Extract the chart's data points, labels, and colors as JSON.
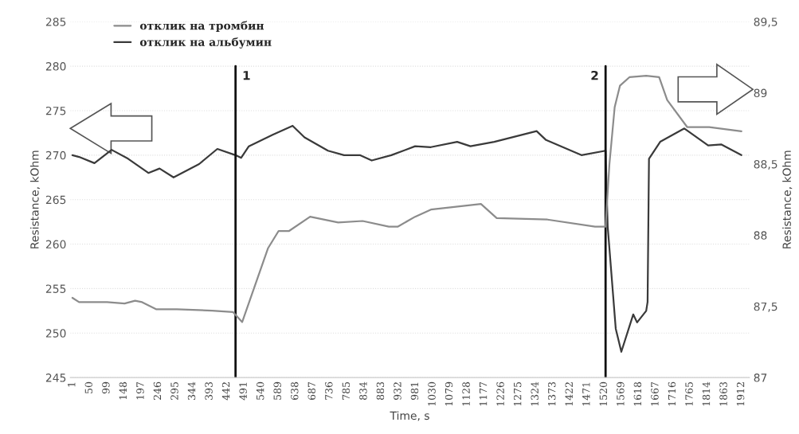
{
  "chart_data": {
    "type": "line",
    "xlabel": "Time, s",
    "ylabel": "Resistance, kOhm",
    "y2label": "Resistance, kOhm",
    "series": [
      {
        "name": "отклик на тромбин",
        "color": "#8c8c8c",
        "axis": "y2",
        "x": [
          1,
          20,
          100,
          150,
          180,
          200,
          240,
          300,
          400,
          460,
          486,
          520,
          560,
          590,
          620,
          680,
          760,
          830,
          905,
          930,
          980,
          1025,
          1168,
          1213,
          1358,
          1494,
          1524,
          1535,
          1550,
          1565,
          1592,
          1640,
          1677,
          1700,
          1757,
          1820,
          1912
        ],
        "values": [
          87.56,
          87.53,
          87.53,
          87.52,
          87.54,
          87.53,
          87.48,
          87.48,
          87.47,
          87.46,
          87.39,
          87.63,
          87.91,
          88.03,
          88.03,
          88.13,
          88.09,
          88.1,
          88.06,
          88.06,
          88.13,
          88.18,
          88.22,
          88.12,
          88.11,
          88.06,
          88.06,
          88.5,
          88.9,
          89.05,
          89.11,
          89.12,
          89.11,
          88.95,
          88.76,
          88.76,
          88.73
        ]
      },
      {
        "name": "отклик на альбумин",
        "color": "#3a3a3a",
        "x": [
          1,
          20,
          64,
          113,
          160,
          218,
          250,
          290,
          363,
          415,
          467,
          483,
          505,
          573,
          630,
          664,
          731,
          777,
          822,
          856,
          912,
          980,
          1025,
          1100,
          1138,
          1206,
          1327,
          1354,
          1455,
          1524,
          1530,
          1553,
          1569,
          1603,
          1614,
          1640,
          1644,
          1648,
          1680,
          1749,
          1817,
          1855,
          1912
        ],
        "values": [
          270,
          269.8,
          269.1,
          270.6,
          269.6,
          268,
          268.5,
          267.5,
          269,
          270.7,
          270,
          269.7,
          271,
          272.3,
          273.3,
          272,
          270.5,
          270,
          270,
          269.4,
          270,
          271,
          270.9,
          271.5,
          271,
          271.5,
          272.7,
          271.7,
          270,
          270.5,
          262,
          250.5,
          247.9,
          252.1,
          251.2,
          252.5,
          253.5,
          269.6,
          271.5,
          273,
          271.1,
          271.2,
          270
        ]
      }
    ],
    "xlim": [
      -5,
      1935
    ],
    "xticks": [
      1,
      50,
      99,
      148,
      197,
      246,
      295,
      344,
      393,
      442,
      491,
      540,
      589,
      638,
      687,
      736,
      785,
      834,
      883,
      932,
      981,
      1030,
      1079,
      1128,
      1177,
      1226,
      1275,
      1324,
      1373,
      1422,
      1471,
      1520,
      1569,
      1618,
      1667,
      1716,
      1765,
      1814,
      1863,
      1912
    ],
    "ylim": [
      245,
      285
    ],
    "yticks": [
      245,
      250,
      255,
      260,
      265,
      270,
      275,
      280,
      285
    ],
    "y2lim": [
      87,
      89.5
    ],
    "y2ticks": [
      87,
      {
        "value": 87.5,
        "label": "87,5"
      },
      88,
      {
        "value": 88.5,
        "label": "88,5"
      },
      89,
      {
        "value": 89.5,
        "label": "89,5"
      }
    ],
    "ref_lines": [
      {
        "axis": "x",
        "value": 467,
        "color": "#111111"
      },
      {
        "axis": "x",
        "value": 1524,
        "color": "#111111"
      }
    ],
    "annotations": [
      {
        "text": "1",
        "x": 467,
        "y": 280
      },
      {
        "text": "2",
        "x": 1524,
        "y": 280
      }
    ],
    "grid": "y",
    "legend": "top left",
    "line_style": "solid",
    "marker": "none"
  }
}
